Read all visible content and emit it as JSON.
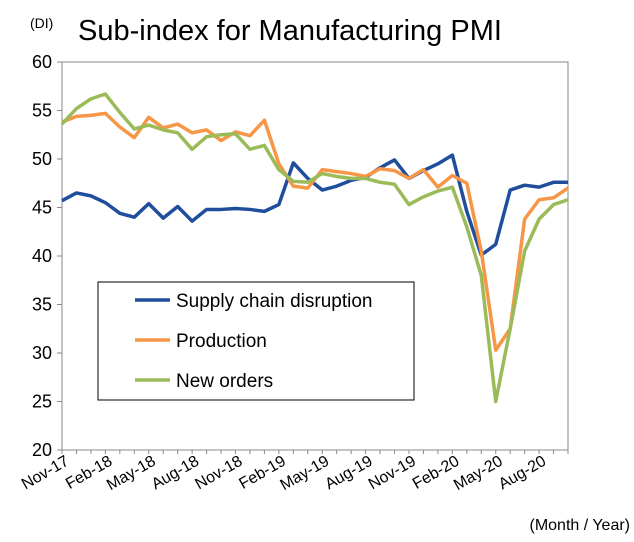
{
  "chart_data": {
    "type": "line",
    "title": "Sub-index for Manufacturing PMI",
    "y_unit": "(DI)",
    "x_label": "(Month / Year)",
    "categories": [
      "Nov-17",
      null,
      null,
      "Feb-18",
      null,
      null,
      "May-18",
      null,
      null,
      "Aug-18",
      null,
      null,
      "Nov-18",
      null,
      null,
      "Feb-19",
      null,
      null,
      "May-19",
      null,
      null,
      "Aug-19",
      null,
      null,
      "Nov-19",
      null,
      null,
      "Feb-20",
      null,
      null,
      "May-20",
      null,
      null,
      "Aug-20",
      null,
      null
    ],
    "series": [
      {
        "name": "Supply chain disruption",
        "color": "#1f4e9c",
        "values": [
          45.7,
          46.5,
          46.2,
          45.5,
          44.4,
          44.0,
          45.4,
          43.9,
          45.1,
          43.6,
          44.8,
          44.8,
          44.9,
          44.8,
          44.6,
          45.3,
          49.6,
          48.0,
          46.8,
          47.2,
          47.8,
          48.1,
          49.1,
          49.9,
          48.0,
          48.8,
          49.5,
          50.4,
          44.6,
          40.1,
          41.2,
          46.8,
          47.3,
          47.1,
          47.6,
          47.6
        ]
      },
      {
        "name": "Production",
        "color": "#f79646",
        "values": [
          53.8,
          54.4,
          54.5,
          54.7,
          53.3,
          52.2,
          54.3,
          53.2,
          53.6,
          52.7,
          53.0,
          51.9,
          52.8,
          52.4,
          54.0,
          49.5,
          47.2,
          47.0,
          48.9,
          48.7,
          48.5,
          48.2,
          49.0,
          48.8,
          48.0,
          48.9,
          47.1,
          48.3,
          47.5,
          40.5,
          30.3,
          32.5,
          43.8,
          45.8,
          46.0,
          47.0
        ]
      },
      {
        "name": "New orders",
        "color": "#9bbb59",
        "values": [
          53.6,
          55.2,
          56.2,
          56.7,
          54.8,
          53.1,
          53.5,
          53.0,
          52.7,
          51.0,
          52.3,
          52.5,
          52.6,
          51.0,
          51.4,
          48.9,
          47.7,
          47.6,
          48.5,
          48.2,
          48.0,
          48.0,
          47.6,
          47.4,
          45.3,
          46.1,
          46.7,
          47.1,
          43.0,
          38.0,
          25.0,
          32.5,
          40.5,
          43.8,
          45.3,
          45.8
        ]
      }
    ],
    "ylim": [
      20,
      60
    ],
    "yticks": [
      20,
      25,
      30,
      35,
      40,
      45,
      50,
      55,
      60
    ]
  }
}
